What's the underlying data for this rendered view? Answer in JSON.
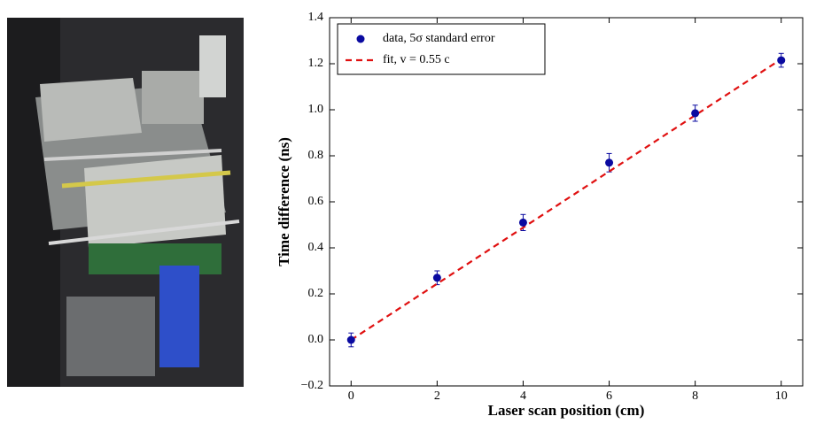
{
  "chart_data": {
    "type": "scatter",
    "xlabel": "Laser scan position (cm)",
    "ylabel": "Time difference (ns)",
    "xlim": [
      -0.5,
      10.5
    ],
    "xticks": [
      0,
      2,
      4,
      6,
      8,
      10
    ],
    "ylim": [
      -0.2,
      1.4
    ],
    "yticks": [
      {
        "value": -0.2,
        "label": "−0.2"
      },
      {
        "value": 0,
        "label": "0.0"
      },
      0.2,
      0.4,
      0.6,
      0.8,
      {
        "value": 1,
        "label": "1.0"
      },
      1.2,
      1.4
    ],
    "legend": "upper left",
    "series": [
      {
        "name": "data, 5σ standard error",
        "color": "#0a0aa0",
        "style": "markers",
        "x": [
          0,
          2,
          4,
          6,
          8,
          10
        ],
        "values": [
          0.0,
          0.27,
          0.51,
          0.77,
          0.985,
          1.215
        ],
        "errors": [
          0.03,
          0.03,
          0.035,
          0.04,
          0.035,
          0.03
        ]
      },
      {
        "name": "fit, v = 0.55 c",
        "color": "#e01010",
        "style": "dashed",
        "x": [
          0,
          10
        ],
        "values": [
          0.0,
          1.22
        ]
      }
    ]
  }
}
